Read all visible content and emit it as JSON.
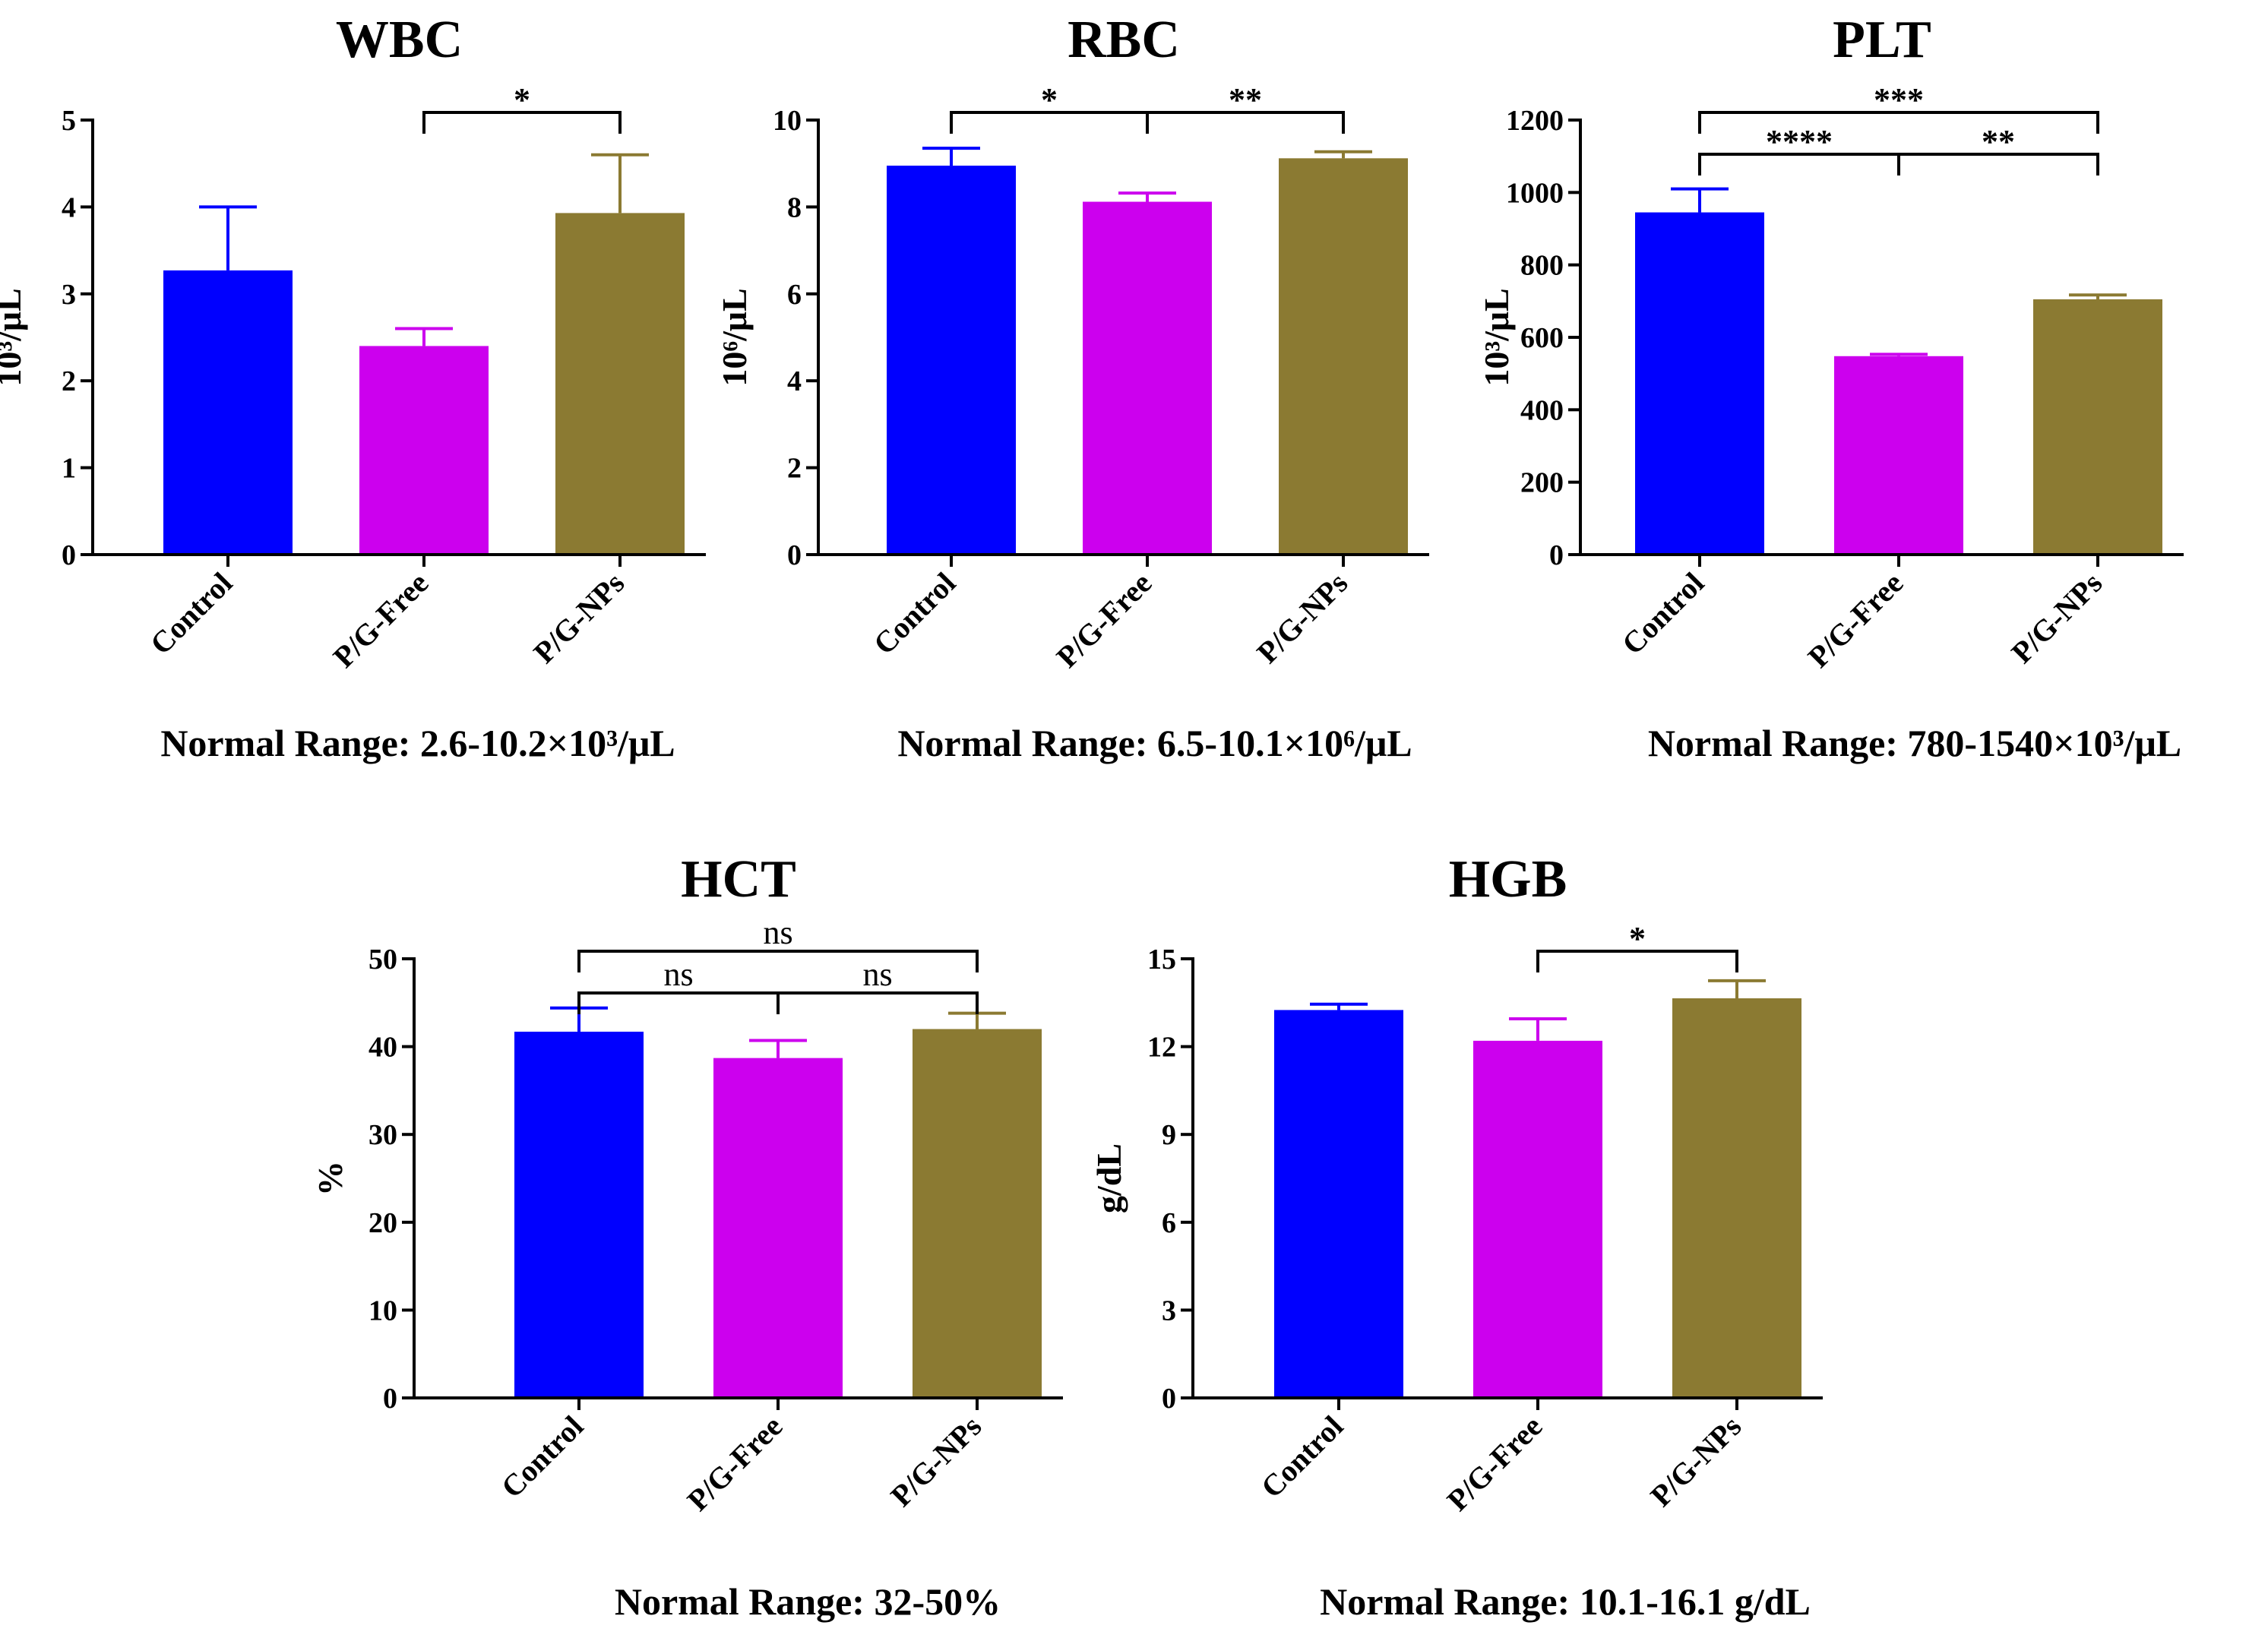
{
  "figure": "hematology-bar-charts",
  "colors": {
    "Control": "#0000ff",
    "P/G-Free": "#cc00ee",
    "P/G-NPs": "#8b7a32",
    "axis": "#000000"
  },
  "chart_data": [
    {
      "id": "wbc",
      "type": "bar",
      "title": "WBC",
      "ylabel": "10³/μL",
      "categories": [
        "Control",
        "P/G-Free",
        "P/G-NPs"
      ],
      "values": [
        3.27,
        2.4,
        3.93
      ],
      "errors": [
        0.73,
        0.2,
        0.67
      ],
      "ylim": [
        0,
        5
      ],
      "yticks": [
        0,
        1,
        2,
        3,
        4,
        5
      ],
      "normal_range": "Normal Range: 2.6-10.2×10³/μL",
      "comparisons": [
        {
          "from": 1,
          "to": 2,
          "label": "*",
          "level": 0
        }
      ]
    },
    {
      "id": "rbc",
      "type": "bar",
      "title": "RBC",
      "ylabel": "10⁶/μL",
      "categories": [
        "Control",
        "P/G-Free",
        "P/G-NPs"
      ],
      "values": [
        8.95,
        8.12,
        9.12
      ],
      "errors": [
        0.4,
        0.2,
        0.15
      ],
      "ylim": [
        0,
        10
      ],
      "yticks": [
        0,
        2,
        4,
        6,
        8,
        10
      ],
      "normal_range": "Normal Range: 6.5-10.1×10⁶/μL",
      "comparisons": [
        {
          "from": 0,
          "to": 1,
          "label": "*",
          "level": 0
        },
        {
          "from": 1,
          "to": 2,
          "label": "**",
          "level": 0
        }
      ]
    },
    {
      "id": "plt",
      "type": "bar",
      "title": "PLT",
      "ylabel": "10³/μL",
      "categories": [
        "Control",
        "P/G-Free",
        "P/G-NPs"
      ],
      "values": [
        945,
        548,
        705
      ],
      "errors": [
        65,
        5,
        12
      ],
      "ylim": [
        0,
        1200
      ],
      "yticks": [
        0,
        200,
        400,
        600,
        800,
        1000,
        1200
      ],
      "normal_range": "Normal Range: 780-1540×10³/μL",
      "comparisons": [
        {
          "from": 0,
          "to": 1,
          "label": "****",
          "level": 0
        },
        {
          "from": 1,
          "to": 2,
          "label": "**",
          "level": 0
        },
        {
          "from": 0,
          "to": 2,
          "label": "***",
          "level": 1
        }
      ]
    },
    {
      "id": "hct",
      "type": "bar",
      "title": "HCT",
      "ylabel": "%",
      "categories": [
        "Control",
        "P/G-Free",
        "P/G-NPs"
      ],
      "values": [
        41.7,
        38.7,
        42.0
      ],
      "errors": [
        2.7,
        2.0,
        1.8
      ],
      "ylim": [
        0,
        50
      ],
      "yticks": [
        0,
        10,
        20,
        30,
        40,
        50
      ],
      "normal_range": "Normal Range: 32-50%",
      "comparisons": [
        {
          "from": 0,
          "to": 1,
          "label": "ns",
          "level": 0
        },
        {
          "from": 1,
          "to": 2,
          "label": "ns",
          "level": 0
        },
        {
          "from": 0,
          "to": 2,
          "label": "ns",
          "level": 1
        }
      ]
    },
    {
      "id": "hgb",
      "type": "bar",
      "title": "HGB",
      "ylabel": "g/dL",
      "categories": [
        "Control",
        "P/G-Free",
        "P/G-NPs"
      ],
      "values": [
        13.25,
        12.2,
        13.65
      ],
      "errors": [
        0.2,
        0.75,
        0.6
      ],
      "ylim": [
        0,
        15
      ],
      "yticks": [
        0,
        3,
        6,
        9,
        12,
        15
      ],
      "normal_range": "Normal Range: 10.1-16.1 g/dL",
      "comparisons": [
        {
          "from": 1,
          "to": 2,
          "label": "*",
          "level": 0
        }
      ]
    }
  ]
}
